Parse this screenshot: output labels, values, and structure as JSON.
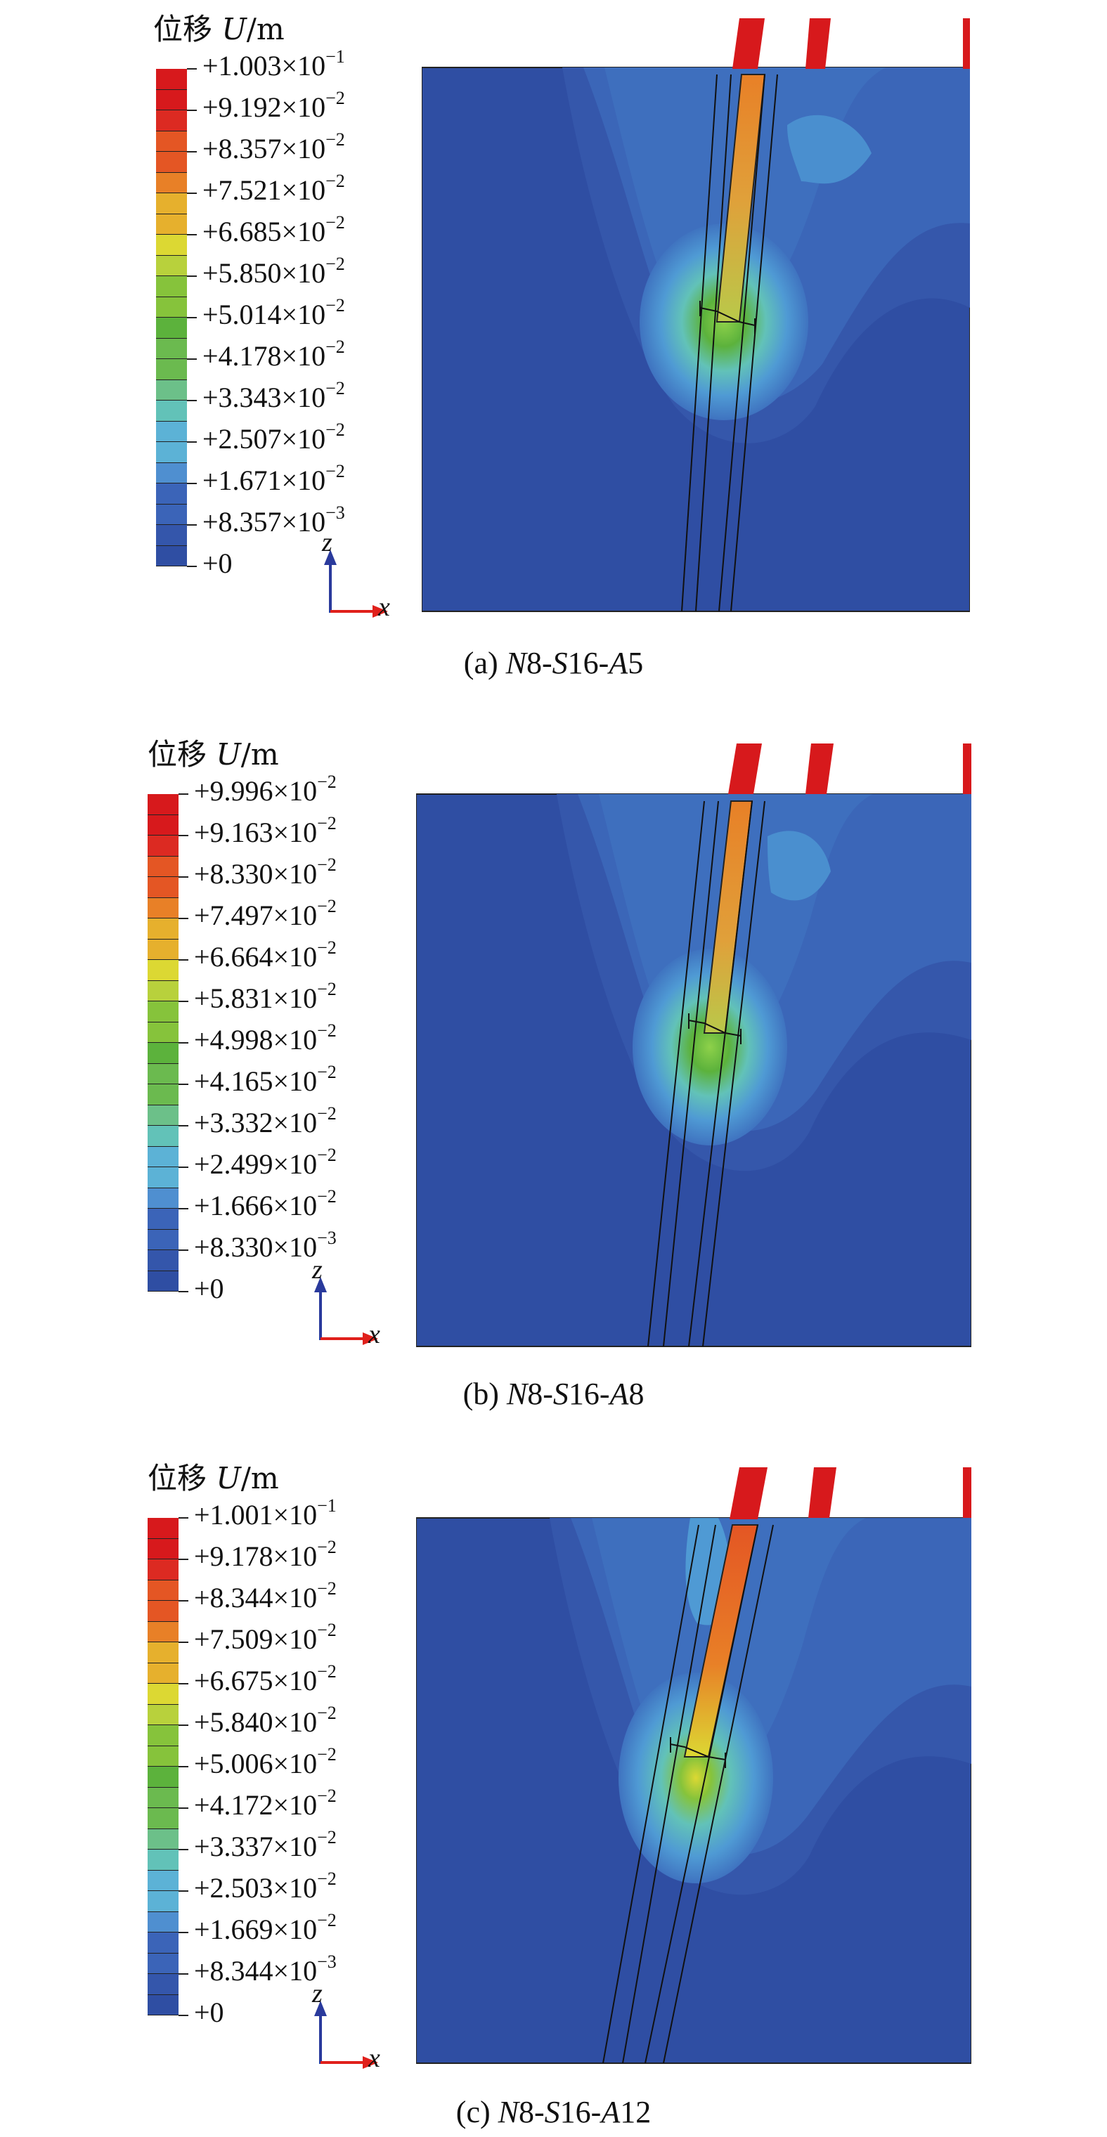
{
  "colors": {
    "contour": [
      "#2f4ea3",
      "#3456ab",
      "#3b64b8",
      "#4f8fd0",
      "#5cb2d6",
      "#62c2b8",
      "#6cc089",
      "#6bba4f",
      "#5cb23c",
      "#86c33b",
      "#b8d13c",
      "#dcd833",
      "#e6b02d",
      "#e88027",
      "#e45624",
      "#dc2a22",
      "#d7191c"
    ]
  },
  "panels": [
    {
      "id": "a",
      "title_cn": "位移",
      "title_var": "U",
      "title_unit": "/m",
      "legend": [
        {
          "m": "+1.003×10",
          "e": "−1"
        },
        {
          "m": "+9.192×10",
          "e": "−2"
        },
        {
          "m": "+8.357×10",
          "e": "−2"
        },
        {
          "m": "+7.521×10",
          "e": "−2"
        },
        {
          "m": "+6.685×10",
          "e": "−2"
        },
        {
          "m": "+5.850×10",
          "e": "−2"
        },
        {
          "m": "+5.014×10",
          "e": "−2"
        },
        {
          "m": "+4.178×10",
          "e": "−2"
        },
        {
          "m": "+3.343×10",
          "e": "−2"
        },
        {
          "m": "+2.507×10",
          "e": "−2"
        },
        {
          "m": "+1.671×10",
          "e": "−2"
        },
        {
          "m": "+8.357×10",
          "e": "−3"
        },
        {
          "m": "+0",
          "e": ""
        }
      ],
      "axis_z": "z",
      "axis_x": "x",
      "caption_prefix": "(a) ",
      "caption_n": "N",
      "caption_n_val": "8-",
      "caption_s": "S",
      "caption_s_val": "16-",
      "caption_a": "A",
      "caption_a_val": "5"
    },
    {
      "id": "b",
      "title_cn": "位移",
      "title_var": "U",
      "title_unit": "/m",
      "legend": [
        {
          "m": "+9.996×10",
          "e": "−2"
        },
        {
          "m": "+9.163×10",
          "e": "−2"
        },
        {
          "m": "+8.330×10",
          "e": "−2"
        },
        {
          "m": "+7.497×10",
          "e": "−2"
        },
        {
          "m": "+6.664×10",
          "e": "−2"
        },
        {
          "m": "+5.831×10",
          "e": "−2"
        },
        {
          "m": "+4.998×10",
          "e": "−2"
        },
        {
          "m": "+4.165×10",
          "e": "−2"
        },
        {
          "m": "+3.332×10",
          "e": "−2"
        },
        {
          "m": "+2.499×10",
          "e": "−2"
        },
        {
          "m": "+1.666×10",
          "e": "−2"
        },
        {
          "m": "+8.330×10",
          "e": "−3"
        },
        {
          "m": "+0",
          "e": ""
        }
      ],
      "axis_z": "z",
      "axis_x": "x",
      "caption_prefix": "(b) ",
      "caption_n": "N",
      "caption_n_val": "8-",
      "caption_s": "S",
      "caption_s_val": "16-",
      "caption_a": "A",
      "caption_a_val": "8"
    },
    {
      "id": "c",
      "title_cn": "位移",
      "title_var": "U",
      "title_unit": "/m",
      "legend": [
        {
          "m": "+1.001×10",
          "e": "−1"
        },
        {
          "m": "+9.178×10",
          "e": "−2"
        },
        {
          "m": "+8.344×10",
          "e": "−2"
        },
        {
          "m": "+7.509×10",
          "e": "−2"
        },
        {
          "m": "+6.675×10",
          "e": "−2"
        },
        {
          "m": "+5.840×10",
          "e": "−2"
        },
        {
          "m": "+5.006×10",
          "e": "−2"
        },
        {
          "m": "+4.172×10",
          "e": "−2"
        },
        {
          "m": "+3.337×10",
          "e": "−2"
        },
        {
          "m": "+2.503×10",
          "e": "−2"
        },
        {
          "m": "+1.669×10",
          "e": "−2"
        },
        {
          "m": "+8.344×10",
          "e": "−3"
        },
        {
          "m": "+0",
          "e": ""
        }
      ],
      "axis_z": "z",
      "axis_x": "x",
      "caption_prefix": "(c) ",
      "caption_n": "N",
      "caption_n_val": "8-",
      "caption_s": "S",
      "caption_s_val": "16-",
      "caption_a": "A",
      "caption_a_val": "12"
    }
  ]
}
